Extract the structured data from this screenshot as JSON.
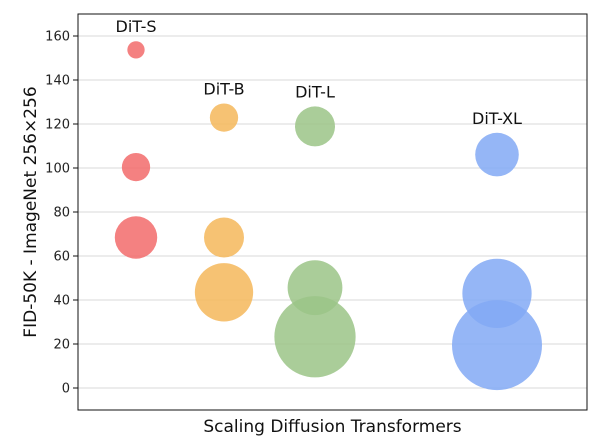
{
  "chart_data": {
    "type": "scatter",
    "title": "",
    "xlabel": "Scaling Diffusion Transformers",
    "ylabel": "FID-50K - ImageNet 256×256",
    "ylim": [
      -10,
      170
    ],
    "yticks": [
      0,
      20,
      40,
      60,
      80,
      100,
      120,
      140,
      160
    ],
    "grid": "horizontal",
    "series": [
      {
        "name": "DiT-S",
        "label": "DiT-S",
        "color": "#f26b6b",
        "points": [
          {
            "y": 153.7,
            "size": 0.03
          },
          {
            "y": 100.4,
            "size": 0.08
          },
          {
            "y": 68.4,
            "size": 0.18
          }
        ]
      },
      {
        "name": "DiT-B",
        "label": "DiT-B",
        "color": "#f5b75a",
        "points": [
          {
            "y": 122.9,
            "size": 0.08
          },
          {
            "y": 68.4,
            "size": 0.16
          },
          {
            "y": 43.5,
            "size": 0.34
          }
        ]
      },
      {
        "name": "DiT-L",
        "label": "DiT-L",
        "color": "#9bc487",
        "points": [
          {
            "y": 118.9,
            "size": 0.16
          },
          {
            "y": 45.6,
            "size": 0.3
          },
          {
            "y": 23.3,
            "size": 0.66
          }
        ]
      },
      {
        "name": "DiT-XL",
        "label": "DiT-XL",
        "color": "#82a9f5",
        "points": [
          {
            "y": 106.1,
            "size": 0.19
          },
          {
            "y": 43.0,
            "size": 0.48
          },
          {
            "y": 19.5,
            "size": 0.81
          }
        ]
      }
    ]
  }
}
